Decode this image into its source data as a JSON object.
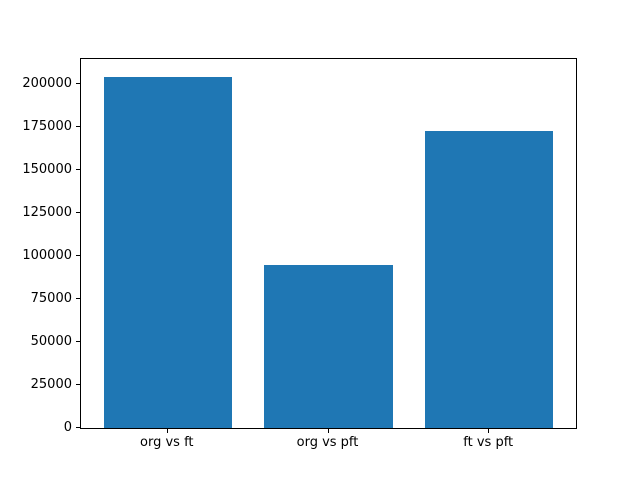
{
  "chart_data": {
    "type": "bar",
    "title": "",
    "xlabel": "",
    "ylabel": "",
    "categories": [
      "org vs ft",
      "org vs pft",
      "ft vs pft"
    ],
    "values": [
      204500,
      95000,
      173000
    ],
    "yticks": [
      0,
      25000,
      50000,
      75000,
      100000,
      125000,
      150000,
      175000,
      200000
    ],
    "ytick_labels": [
      "0",
      "25000",
      "50000",
      "75000",
      "100000",
      "125000",
      "150000",
      "175000",
      "200000"
    ],
    "ylim": [
      0,
      214725
    ],
    "xlim": [
      -0.54,
      2.54
    ],
    "bar_width": 0.8,
    "bar_color": "#1f77b4",
    "axes_edge_color": "#000000",
    "background_color": "#ffffff",
    "grid": false,
    "legend": false
  }
}
